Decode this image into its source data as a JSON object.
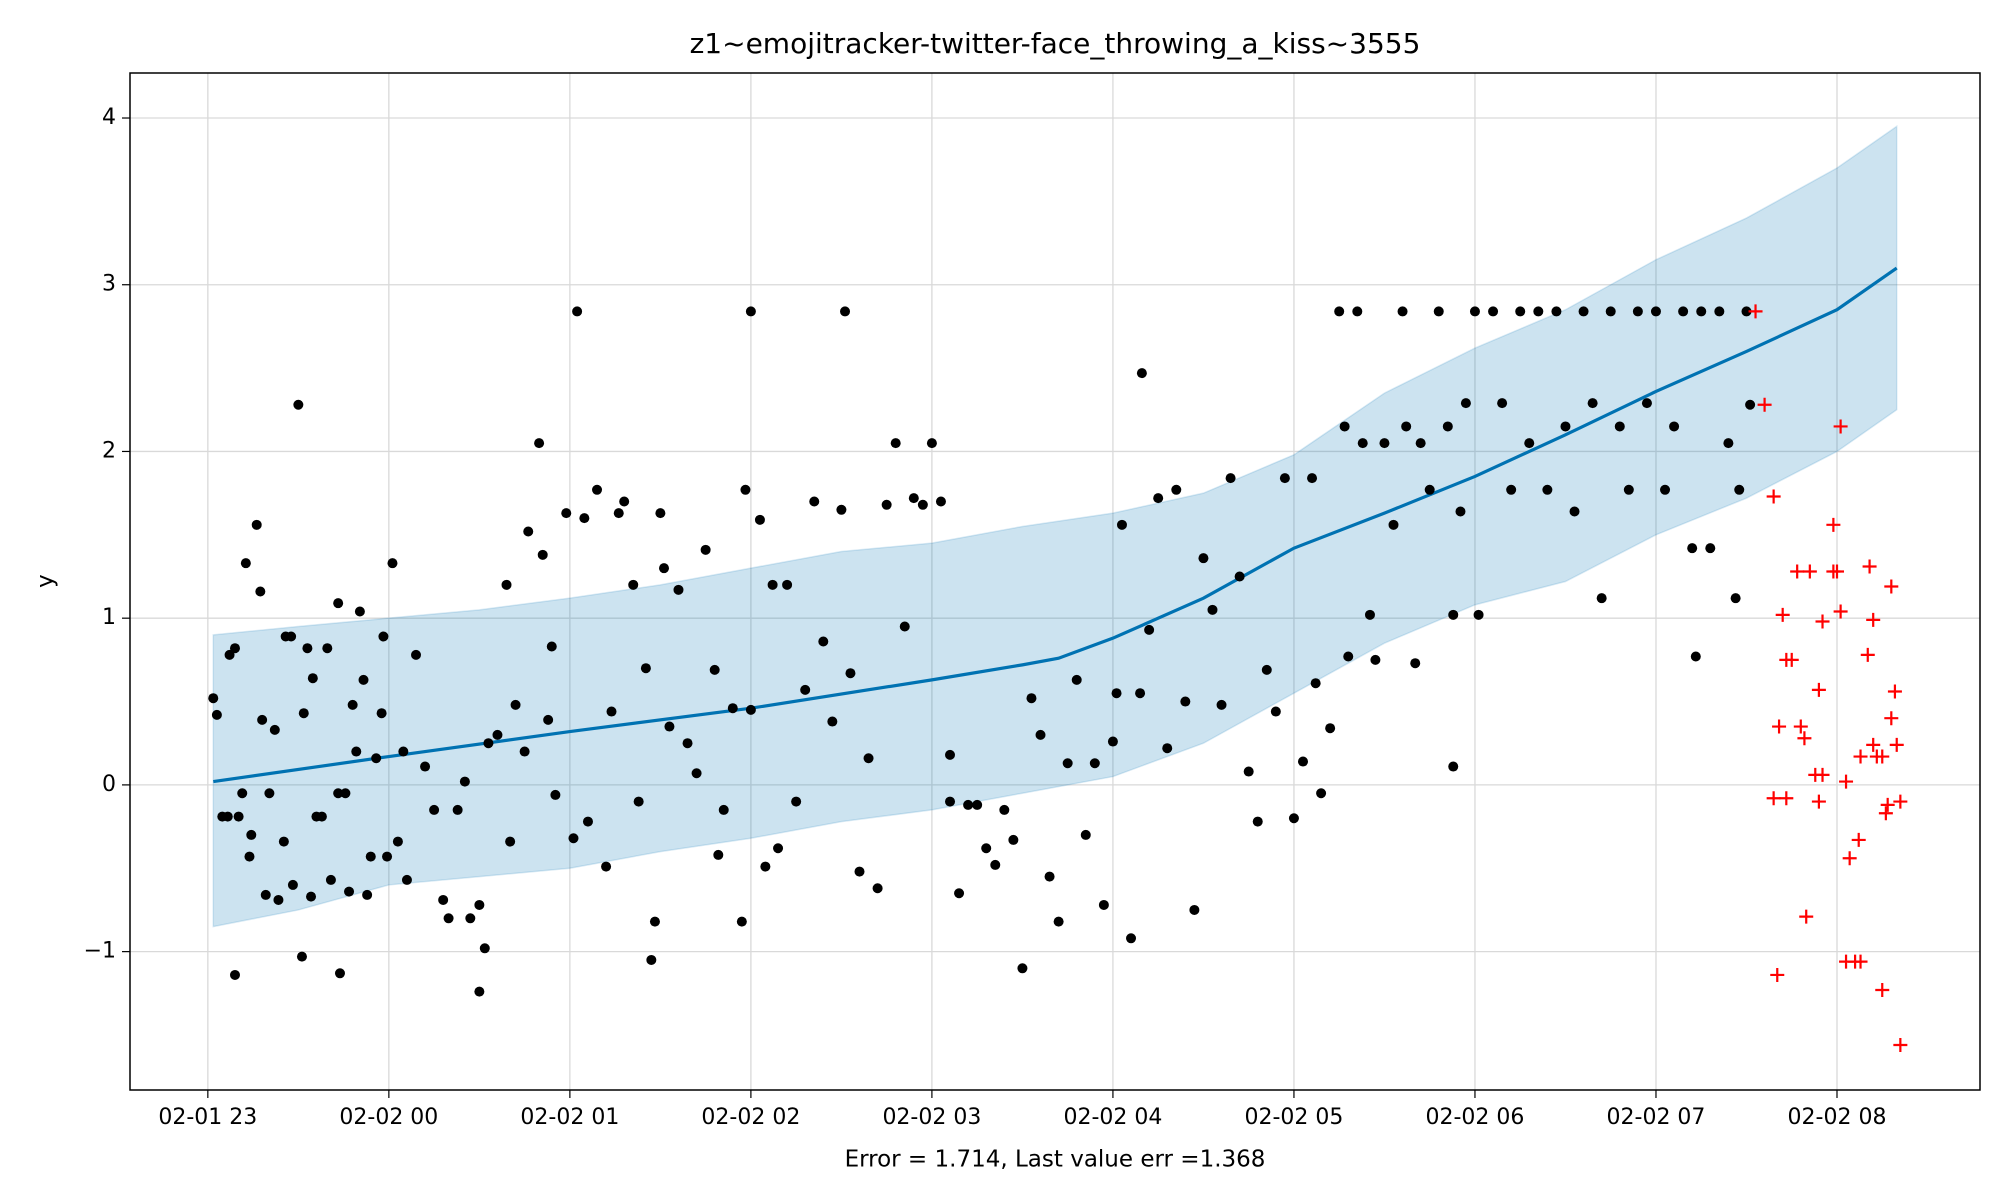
{
  "chart_data": {
    "type": "line",
    "title": "z1~emojitracker-twitter-face_throwing_a_kiss~3555",
    "xlabel": "Error = 1.714, Last value err =1.368",
    "ylabel": "y",
    "grid": true,
    "xlim": [
      -0.43,
      9.79
    ],
    "ylim": [
      -1.83,
      4.27
    ],
    "xticks": [
      {
        "value": 0,
        "label": "02-01 23"
      },
      {
        "value": 1,
        "label": "02-02 00"
      },
      {
        "value": 2,
        "label": "02-02 01"
      },
      {
        "value": 3,
        "label": "02-02 02"
      },
      {
        "value": 4,
        "label": "02-02 03"
      },
      {
        "value": 5,
        "label": "02-02 04"
      },
      {
        "value": 6,
        "label": "02-02 05"
      },
      {
        "value": 7,
        "label": "02-02 06"
      },
      {
        "value": 8,
        "label": "02-02 07"
      },
      {
        "value": 9,
        "label": "02-02 08"
      }
    ],
    "yticks": [
      {
        "value": -1,
        "label": "−1"
      },
      0,
      1,
      2,
      3,
      4
    ],
    "series": [
      {
        "type": "area",
        "color": "#0072B2",
        "x": [
          0.03,
          0.5,
          1,
          1.5,
          2,
          2.5,
          3,
          3.5,
          4,
          4.5,
          5,
          5.5,
          6,
          6.5,
          7,
          7.5,
          8,
          8.5,
          9,
          9.33
        ],
        "upper": [
          0.9,
          0.95,
          1.0,
          1.05,
          1.12,
          1.2,
          1.3,
          1.4,
          1.45,
          1.55,
          1.63,
          1.75,
          1.98,
          2.35,
          2.62,
          2.85,
          3.15,
          3.4,
          3.7,
          3.95
        ],
        "lower": [
          -0.85,
          -0.75,
          -0.6,
          -0.55,
          -0.5,
          -0.4,
          -0.32,
          -0.22,
          -0.15,
          -0.05,
          0.05,
          0.25,
          0.55,
          0.85,
          1.08,
          1.22,
          1.5,
          1.72,
          2.0,
          2.25
        ]
      },
      {
        "type": "line",
        "color": "#0072B2",
        "x": [
          0.03,
          1,
          2,
          3,
          4,
          4.5,
          4.7,
          5,
          5.5,
          6,
          6.5,
          7,
          7.5,
          8,
          8.5,
          9,
          9.33
        ],
        "values": [
          0.02,
          0.17,
          0.32,
          0.46,
          0.63,
          0.72,
          0.76,
          0.88,
          1.12,
          1.42,
          1.63,
          1.85,
          2.1,
          2.36,
          2.6,
          2.85,
          3.1
        ]
      },
      {
        "type": "scatter",
        "marker": "dot",
        "color": "#000000",
        "x": [
          0.03,
          0.05,
          0.08,
          0.11,
          0.12,
          0.15,
          0.15,
          0.17,
          0.19,
          0.21,
          0.23,
          0.24,
          0.27,
          0.29,
          0.3,
          0.32,
          0.34,
          0.37,
          0.39,
          0.42,
          0.43,
          0.46,
          0.47,
          0.5,
          0.52,
          0.53,
          0.55,
          0.57,
          0.58,
          0.6,
          0.63,
          0.66,
          0.68,
          0.72,
          0.72,
          0.73,
          0.76,
          0.78,
          0.8,
          0.82,
          0.84,
          0.86,
          0.88,
          0.9,
          0.93,
          0.96,
          0.97,
          0.99,
          1.02,
          1.05,
          1.08,
          1.1,
          1.15,
          1.2,
          1.25,
          1.3,
          1.33,
          1.38,
          1.42,
          1.45,
          1.5,
          1.5,
          1.53,
          1.55,
          1.6,
          1.65,
          1.67,
          1.7,
          1.75,
          1.77,
          1.85,
          1.83,
          1.88,
          1.9,
          1.92,
          1.98,
          2.02,
          2.04,
          2.08,
          2.1,
          2.15,
          2.2,
          2.23,
          2.27,
          2.3,
          2.35,
          2.38,
          2.42,
          2.45,
          2.47,
          2.5,
          2.52,
          2.55,
          2.6,
          2.65,
          2.7,
          2.75,
          2.8,
          2.82,
          2.85,
          2.9,
          2.95,
          2.97,
          3.0,
          3.0,
          3.05,
          3.08,
          3.12,
          3.15,
          3.2,
          3.25,
          3.3,
          3.35,
          3.4,
          3.45,
          3.5,
          3.52,
          3.55,
          3.6,
          3.65,
          3.7,
          3.75,
          3.8,
          3.85,
          3.9,
          3.95,
          4.0,
          4.05,
          4.1,
          4.1,
          4.15,
          4.2,
          4.25,
          4.3,
          4.35,
          4.4,
          4.45,
          4.5,
          4.55,
          4.6,
          4.65,
          4.7,
          4.75,
          4.8,
          4.85,
          4.9,
          4.95,
          5.0,
          5.02,
          5.05,
          5.1,
          5.15,
          5.16,
          5.2,
          5.25,
          5.3,
          5.35,
          5.4,
          5.45,
          5.5,
          5.55,
          5.6,
          5.65,
          5.7,
          5.75,
          5.8,
          5.85,
          5.9,
          5.95,
          6.0,
          6.05,
          6.1,
          6.12,
          6.15,
          6.2,
          6.25,
          6.28,
          6.3,
          6.35,
          6.38,
          6.42,
          6.45,
          6.5,
          6.55,
          6.6,
          6.62,
          6.67,
          6.7,
          6.75,
          6.8,
          6.85,
          6.88,
          6.88,
          6.92,
          6.95,
          7.0,
          7.02,
          7.1,
          7.15,
          7.2,
          7.25,
          7.3,
          7.35,
          7.4,
          7.45,
          7.5,
          7.55,
          7.6,
          7.65,
          7.7,
          7.75,
          7.8,
          7.85,
          7.9,
          7.95,
          8.0,
          8.05,
          8.1,
          8.15,
          8.2,
          8.22,
          8.25,
          8.3,
          8.35,
          8.4,
          8.44,
          8.46,
          8.5,
          8.52
        ],
        "values": [
          0.52,
          0.42,
          -0.19,
          -0.19,
          0.78,
          0.82,
          -1.14,
          -0.19,
          -0.05,
          1.33,
          -0.43,
          -0.3,
          1.56,
          1.16,
          0.39,
          -0.66,
          -0.05,
          0.33,
          -0.69,
          -0.34,
          0.89,
          0.89,
          -0.6,
          2.28,
          -1.03,
          0.43,
          0.82,
          -0.67,
          0.64,
          -0.19,
          -0.19,
          0.82,
          -0.57,
          -0.05,
          1.09,
          -1.13,
          -0.05,
          -0.64,
          0.48,
          0.2,
          1.04,
          0.63,
          -0.66,
          -0.43,
          0.16,
          0.43,
          0.89,
          -0.43,
          1.33,
          -0.34,
          0.2,
          -0.57,
          0.78,
          0.11,
          -0.15,
          -0.69,
          -0.8,
          -0.15,
          0.02,
          -0.8,
          -0.72,
          -1.24,
          -0.98,
          0.25,
          0.3,
          1.2,
          -0.34,
          0.48,
          0.2,
          1.52,
          1.38,
          2.05,
          0.39,
          0.83,
          -0.06,
          1.63,
          -0.32,
          2.84,
          1.6,
          -0.22,
          1.77,
          -0.49,
          0.44,
          1.63,
          1.7,
          1.2,
          -0.1,
          0.7,
          -1.05,
          -0.82,
          1.63,
          1.3,
          0.35,
          1.17,
          0.25,
          0.07,
          1.41,
          0.69,
          -0.42,
          -0.15,
          0.46,
          -0.82,
          1.77,
          2.84,
          0.45,
          1.59,
          -0.49,
          1.2,
          -0.38,
          1.2,
          -0.1,
          0.57,
          1.7,
          0.86,
          0.38,
          1.65,
          2.84,
          0.67,
          -0.52,
          0.16,
          -0.62,
          1.68,
          2.05,
          0.95,
          1.72,
          1.68,
          2.05,
          1.7,
          -0.1,
          0.18,
          -0.65,
          -0.12,
          -0.12,
          -0.38,
          -0.48,
          -0.15,
          -0.33,
          -1.1,
          0.52,
          0.3,
          -0.55,
          -0.82,
          0.13,
          0.63,
          -0.3,
          0.13,
          -0.72,
          0.26,
          0.55,
          1.56,
          -0.92,
          0.55,
          2.47,
          0.93,
          1.72,
          0.22,
          1.77,
          0.5,
          -0.75,
          1.36,
          1.05,
          0.48,
          1.84,
          1.25,
          0.08,
          -0.22,
          0.69,
          0.44,
          1.84,
          -0.2,
          0.14,
          1.84,
          0.61,
          -0.05,
          0.34,
          2.84,
          2.15,
          0.77,
          2.84,
          2.05,
          1.02,
          0.75,
          2.05,
          1.56,
          2.84,
          2.15,
          0.73,
          2.05,
          1.77,
          2.84,
          2.15,
          1.02,
          0.11,
          1.64,
          2.29,
          2.84,
          1.02,
          2.84,
          2.29,
          1.77,
          2.84,
          2.05,
          2.84,
          1.77,
          2.84,
          2.15,
          1.64,
          2.84,
          2.29,
          1.12,
          2.84,
          2.15,
          1.77,
          2.84,
          2.29,
          2.84,
          1.77,
          2.15,
          2.84,
          1.42,
          0.77,
          2.84,
          1.42,
          2.84,
          2.05,
          1.12,
          1.77,
          2.84,
          2.28
        ]
      },
      {
        "type": "scatter",
        "marker": "plus",
        "color": "#ff0000",
        "x": [
          8.55,
          8.6,
          8.65,
          8.7,
          8.72,
          8.75,
          8.68,
          8.65,
          8.72,
          8.67,
          8.8,
          8.82,
          8.78,
          8.85,
          8.9,
          8.88,
          8.92,
          8.9,
          8.83,
          8.92,
          8.98,
          9.0,
          8.98,
          9.02,
          9.05,
          9.07,
          9.05,
          9.1,
          9.13,
          9.12,
          9.13,
          9.02,
          9.17,
          9.18,
          9.2,
          9.2,
          9.22,
          9.25,
          9.27,
          9.28,
          9.3,
          9.3,
          9.32,
          9.33,
          9.35,
          9.25,
          9.35
        ],
        "values": [
          2.84,
          2.28,
          1.73,
          1.02,
          0.75,
          0.75,
          0.35,
          -0.08,
          -0.08,
          -1.14,
          0.35,
          0.28,
          1.28,
          1.28,
          0.57,
          0.06,
          0.06,
          -0.1,
          -0.79,
          0.98,
          1.28,
          1.28,
          1.56,
          1.04,
          0.02,
          -0.44,
          -1.06,
          -1.06,
          -1.06,
          -0.33,
          0.17,
          2.15,
          0.78,
          1.31,
          0.99,
          0.24,
          0.17,
          0.17,
          -0.17,
          -0.12,
          0.4,
          1.19,
          0.56,
          0.24,
          -0.1,
          -1.23,
          -1.56
        ]
      }
    ]
  }
}
